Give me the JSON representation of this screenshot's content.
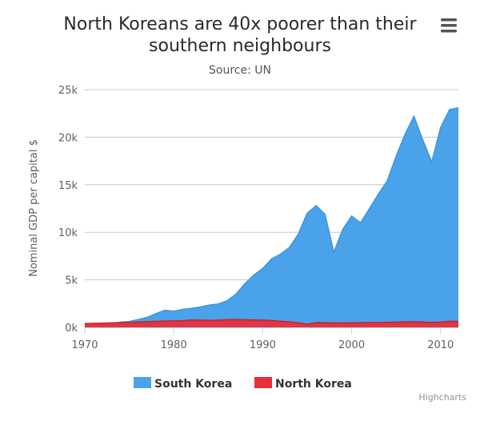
{
  "menu": {
    "icon": "hamburger-menu-icon"
  },
  "credits": "Highcharts",
  "chart_data": {
    "type": "area",
    "title": "North Koreans are 40x poorer than their southern neighbours",
    "title_lines": [
      "North Koreans are 40x poorer than their",
      "southern neighbours"
    ],
    "subtitle": "Source: UN",
    "ylabel": "Nominal GDP per capital $",
    "xlabel": "",
    "x_range": [
      1970,
      2012
    ],
    "ylim": [
      0,
      25000
    ],
    "x_ticks": [
      1970,
      1980,
      1990,
      2000,
      2010
    ],
    "y_ticks": [
      0,
      5000,
      10000,
      15000,
      20000,
      25000
    ],
    "y_tick_labels": [
      "0k",
      "5k",
      "10k",
      "15k",
      "20k",
      "25k"
    ],
    "grid": "horizontal",
    "legend_position": "bottom-center",
    "series": [
      {
        "name": "South Korea",
        "color": "#4aa3ea",
        "x": [
          1970,
          1971,
          1972,
          1973,
          1974,
          1975,
          1976,
          1977,
          1978,
          1979,
          1980,
          1981,
          1982,
          1983,
          1984,
          1985,
          1986,
          1987,
          1988,
          1989,
          1990,
          1991,
          1992,
          1993,
          1994,
          1995,
          1996,
          1997,
          1998,
          1999,
          2000,
          2001,
          2002,
          2003,
          2004,
          2005,
          2006,
          2007,
          2008,
          2009,
          2010,
          2011,
          2012
        ],
        "values": [
          280,
          300,
          330,
          400,
          550,
          620,
          820,
          1050,
          1450,
          1800,
          1700,
          1900,
          2000,
          2150,
          2350,
          2450,
          2800,
          3500,
          4600,
          5500,
          6200,
          7200,
          7700,
          8400,
          9800,
          12000,
          12800,
          11900,
          7900,
          10300,
          11700,
          11000,
          12500,
          14000,
          15400,
          18000,
          20300,
          22200,
          19700,
          17400,
          21000,
          22900,
          23100
        ]
      },
      {
        "name": "North Korea",
        "color": "#e8303a",
        "x": [
          1970,
          1971,
          1972,
          1973,
          1974,
          1975,
          1976,
          1977,
          1978,
          1979,
          1980,
          1981,
          1982,
          1983,
          1984,
          1985,
          1986,
          1987,
          1988,
          1989,
          1990,
          1991,
          1992,
          1993,
          1994,
          1995,
          1996,
          1997,
          1998,
          1999,
          2000,
          2001,
          2002,
          2003,
          2004,
          2005,
          2006,
          2007,
          2008,
          2009,
          2010,
          2011,
          2012
        ],
        "values": [
          400,
          420,
          440,
          470,
          500,
          520,
          560,
          600,
          630,
          660,
          680,
          700,
          780,
          760,
          740,
          760,
          800,
          820,
          800,
          780,
          760,
          720,
          640,
          580,
          480,
          330,
          500,
          480,
          460,
          460,
          470,
          480,
          500,
          510,
          530,
          550,
          580,
          600,
          560,
          520,
          560,
          640,
          620
        ]
      }
    ]
  }
}
